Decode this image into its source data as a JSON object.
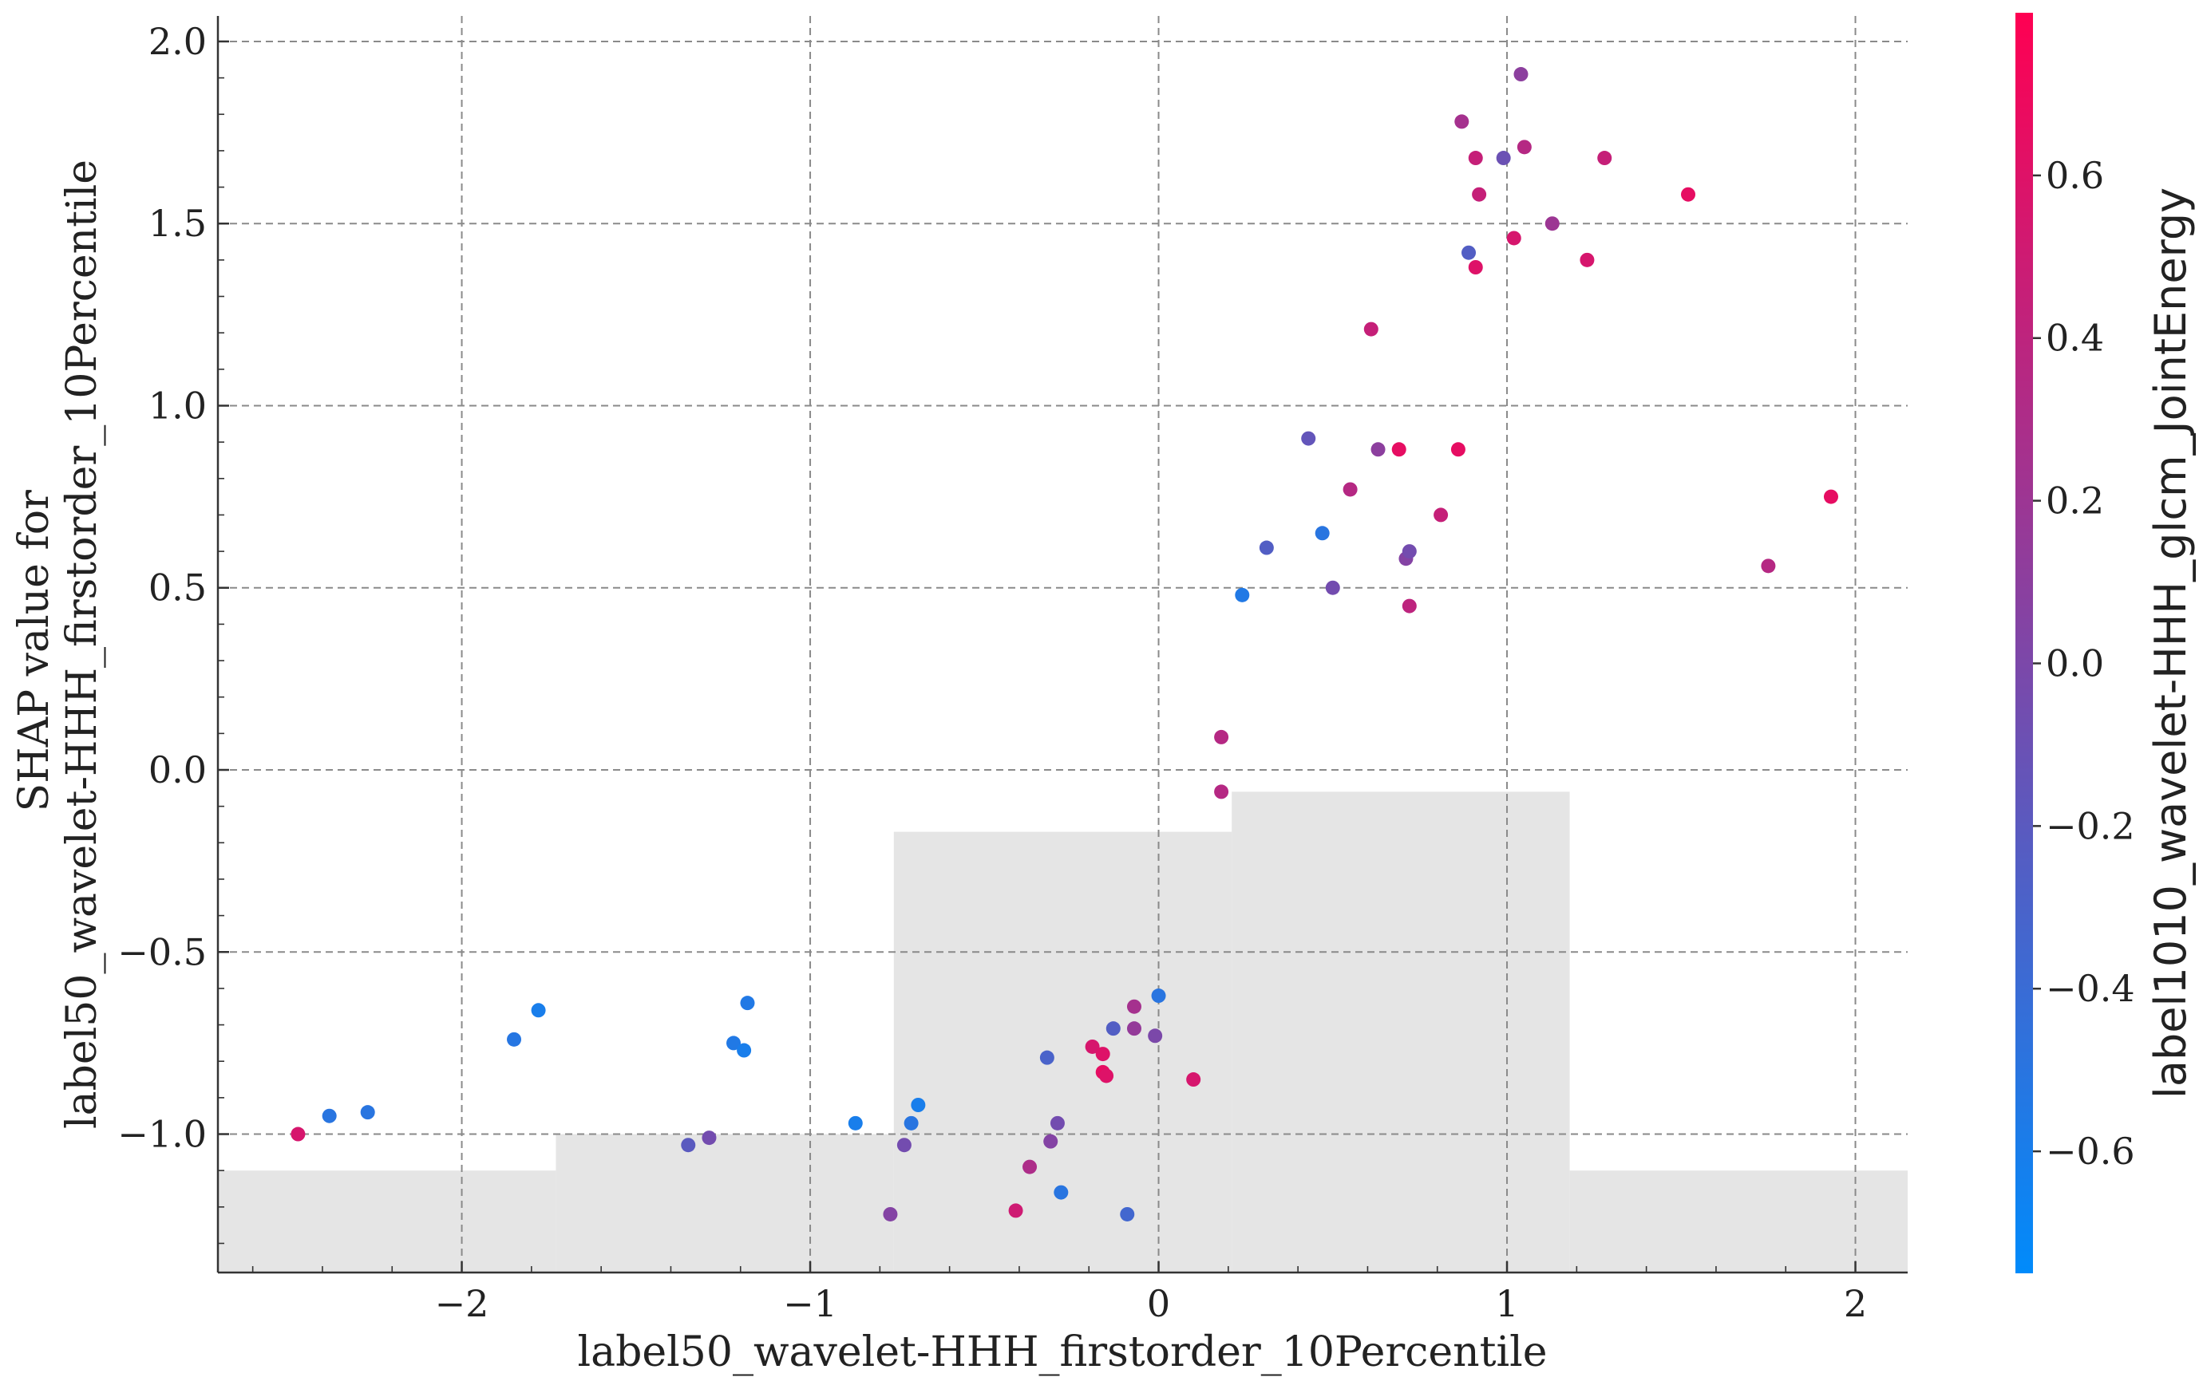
{
  "chart_data": {
    "type": "scatter",
    "xlabel": "label50_wavelet-HHH_firstorder_10Percentile",
    "ylabel_lines": [
      "SHAP value for",
      "label50_wavelet-HHH_firstorder_10Percentile"
    ],
    "xlim": [
      -2.7,
      2.15
    ],
    "ylim": [
      -1.38,
      2.07
    ],
    "xticks": [
      -2,
      -1,
      0,
      1,
      2
    ],
    "xtick_labels": [
      "−2",
      "−1",
      "0",
      "1",
      "2"
    ],
    "yticks": [
      -1.0,
      -0.5,
      0.0,
      0.5,
      1.0,
      1.5,
      2.0
    ],
    "ytick_labels": [
      "−1.0",
      "−0.5",
      "0.0",
      "0.5",
      "1.0",
      "1.5",
      "2.0"
    ],
    "grid": true,
    "colorbar": {
      "label": "label1010_wavelet-HHH_glcm_JointEnergy",
      "range": [
        -0.75,
        0.8
      ],
      "ticks": [
        -0.6,
        -0.4,
        -0.2,
        0.0,
        0.2,
        0.4,
        0.6
      ],
      "tick_labels": [
        "−0.6",
        "−0.4",
        "−0.2",
        "0.0",
        "0.2",
        "0.4",
        "0.6"
      ],
      "color_low": "#008bfb",
      "color_high": "#ff0052"
    },
    "histogram_background": {
      "color": "#e5e5e5",
      "bin_edges": [
        -2.7,
        -1.73,
        -0.76,
        0.21,
        1.18,
        2.15
      ],
      "heights": [
        -1.1,
        -1.0,
        -0.17,
        -0.06,
        -1.1
      ]
    },
    "points": [
      {
        "x": -2.47,
        "y": -1.0,
        "c": 0.55
      },
      {
        "x": -2.38,
        "y": -0.95,
        "c": -0.5
      },
      {
        "x": -2.27,
        "y": -0.94,
        "c": -0.5
      },
      {
        "x": -1.85,
        "y": -0.74,
        "c": -0.52
      },
      {
        "x": -1.78,
        "y": -0.66,
        "c": -0.6
      },
      {
        "x": -1.35,
        "y": -1.03,
        "c": -0.2
      },
      {
        "x": -1.29,
        "y": -1.01,
        "c": -0.05
      },
      {
        "x": -1.22,
        "y": -0.75,
        "c": -0.55
      },
      {
        "x": -1.19,
        "y": -0.77,
        "c": -0.6
      },
      {
        "x": -1.18,
        "y": -0.64,
        "c": -0.55
      },
      {
        "x": -0.87,
        "y": -0.97,
        "c": -0.6
      },
      {
        "x": -0.77,
        "y": -1.22,
        "c": 0.05
      },
      {
        "x": -0.73,
        "y": -1.03,
        "c": -0.05
      },
      {
        "x": -0.71,
        "y": -0.97,
        "c": -0.5
      },
      {
        "x": -0.69,
        "y": -0.92,
        "c": -0.6
      },
      {
        "x": -0.41,
        "y": -1.21,
        "c": 0.5
      },
      {
        "x": -0.37,
        "y": -1.09,
        "c": 0.3
      },
      {
        "x": -0.32,
        "y": -0.79,
        "c": -0.3
      },
      {
        "x": -0.31,
        "y": -1.02,
        "c": 0.05
      },
      {
        "x": -0.29,
        "y": -0.97,
        "c": -0.05
      },
      {
        "x": -0.28,
        "y": -1.16,
        "c": -0.5
      },
      {
        "x": -0.19,
        "y": -0.76,
        "c": 0.55
      },
      {
        "x": -0.16,
        "y": -0.78,
        "c": 0.6
      },
      {
        "x": -0.16,
        "y": -0.83,
        "c": 0.65
      },
      {
        "x": -0.15,
        "y": -0.84,
        "c": 0.6
      },
      {
        "x": -0.13,
        "y": -0.71,
        "c": -0.25
      },
      {
        "x": -0.09,
        "y": -1.22,
        "c": -0.35
      },
      {
        "x": -0.07,
        "y": -0.65,
        "c": 0.25
      },
      {
        "x": -0.07,
        "y": -0.71,
        "c": 0.15
      },
      {
        "x": -0.01,
        "y": -0.73,
        "c": 0.0
      },
      {
        "x": 0.0,
        "y": -0.62,
        "c": -0.5
      },
      {
        "x": 0.1,
        "y": -0.85,
        "c": 0.55
      },
      {
        "x": 0.18,
        "y": 0.09,
        "c": 0.35
      },
      {
        "x": 0.18,
        "y": -0.06,
        "c": 0.35
      },
      {
        "x": 0.24,
        "y": 0.48,
        "c": -0.55
      },
      {
        "x": 0.31,
        "y": 0.61,
        "c": -0.25
      },
      {
        "x": 0.43,
        "y": 0.91,
        "c": -0.15
      },
      {
        "x": 0.47,
        "y": 0.65,
        "c": -0.5
      },
      {
        "x": 0.5,
        "y": 0.5,
        "c": -0.05
      },
      {
        "x": 0.55,
        "y": 0.77,
        "c": 0.35
      },
      {
        "x": 0.61,
        "y": 1.21,
        "c": 0.45
      },
      {
        "x": 0.63,
        "y": 0.88,
        "c": 0.1
      },
      {
        "x": 0.69,
        "y": 0.88,
        "c": 0.65
      },
      {
        "x": 0.71,
        "y": 0.58,
        "c": 0.05
      },
      {
        "x": 0.72,
        "y": 0.6,
        "c": -0.05
      },
      {
        "x": 0.72,
        "y": 0.45,
        "c": 0.4
      },
      {
        "x": 0.81,
        "y": 0.7,
        "c": 0.45
      },
      {
        "x": 0.86,
        "y": 0.88,
        "c": 0.65
      },
      {
        "x": 0.87,
        "y": 1.78,
        "c": 0.25
      },
      {
        "x": 0.89,
        "y": 1.42,
        "c": -0.25
      },
      {
        "x": 0.91,
        "y": 1.68,
        "c": 0.45
      },
      {
        "x": 0.91,
        "y": 1.38,
        "c": 0.6
      },
      {
        "x": 0.92,
        "y": 1.58,
        "c": 0.45
      },
      {
        "x": 0.99,
        "y": 1.68,
        "c": -0.1
      },
      {
        "x": 1.02,
        "y": 1.46,
        "c": 0.55
      },
      {
        "x": 1.04,
        "y": 1.91,
        "c": 0.1
      },
      {
        "x": 1.05,
        "y": 1.71,
        "c": 0.35
      },
      {
        "x": 1.13,
        "y": 1.5,
        "c": 0.2
      },
      {
        "x": 1.23,
        "y": 1.4,
        "c": 0.55
      },
      {
        "x": 1.28,
        "y": 1.68,
        "c": 0.45
      },
      {
        "x": 1.52,
        "y": 1.58,
        "c": 0.65
      },
      {
        "x": 1.75,
        "y": 0.56,
        "c": 0.35
      },
      {
        "x": 1.93,
        "y": 0.75,
        "c": 0.65
      }
    ]
  }
}
